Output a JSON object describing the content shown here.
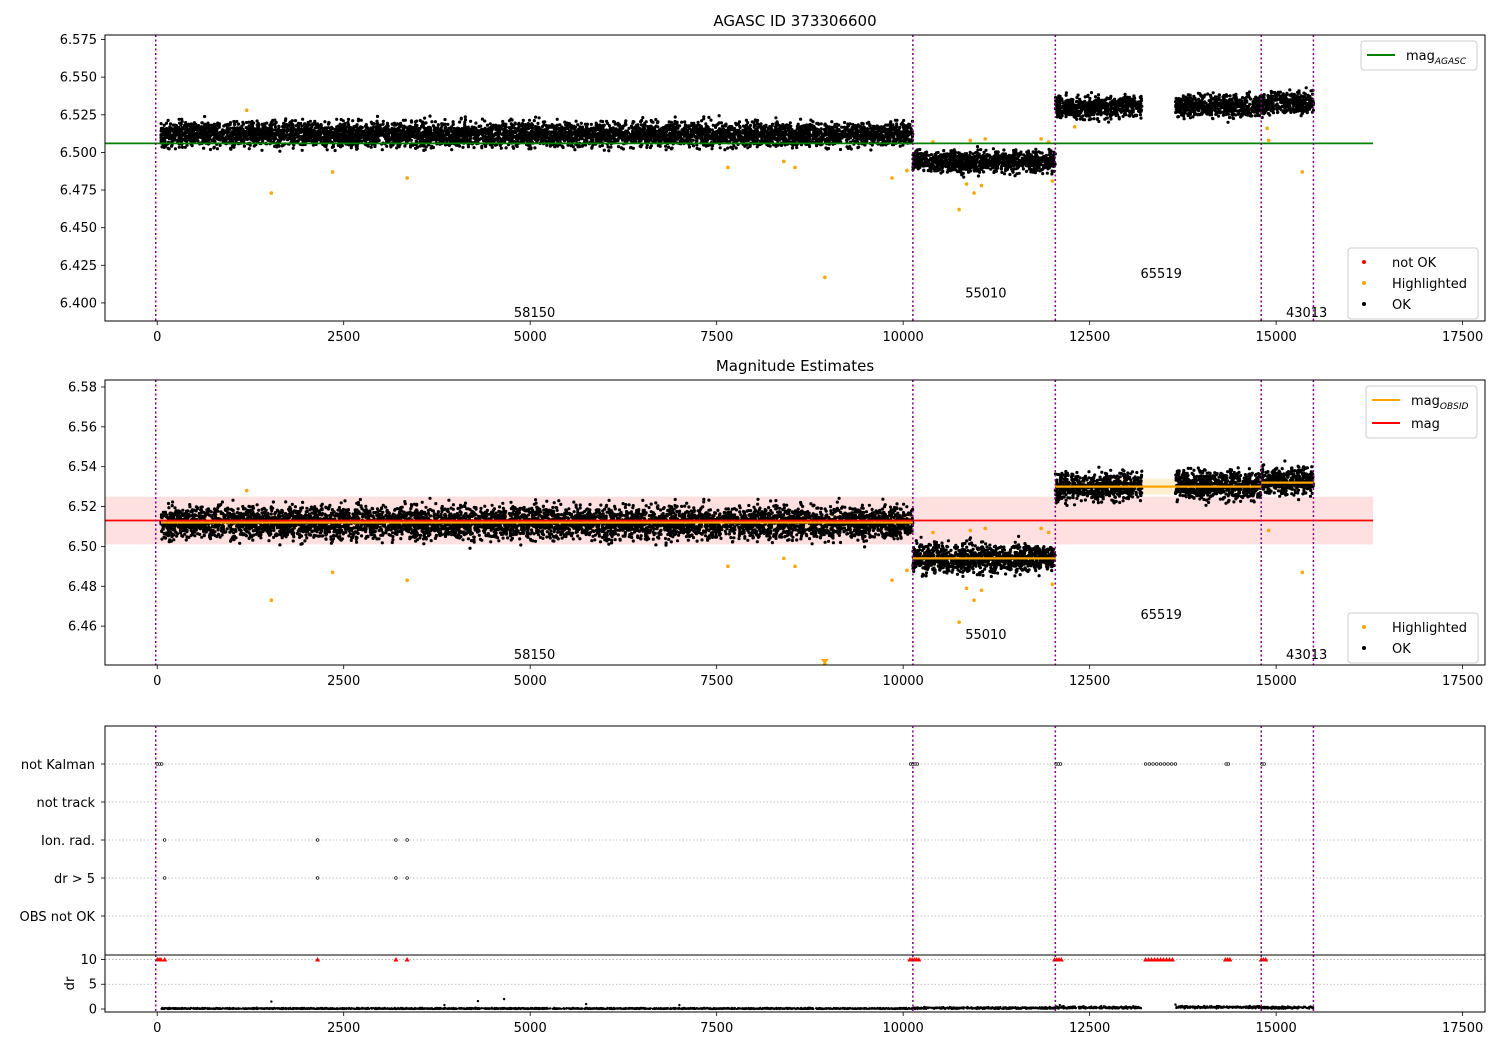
{
  "chart_data": [
    {
      "type": "scatter",
      "title": "AGASC ID 373306600",
      "xlim": [
        -700,
        17800
      ],
      "ylim": [
        6.388,
        6.578
      ],
      "xticks": [
        0,
        2500,
        5000,
        7500,
        10000,
        12500,
        15000,
        17500
      ],
      "yticks": [
        6.4,
        6.425,
        6.45,
        6.475,
        6.5,
        6.525,
        6.55,
        6.575
      ],
      "ytick_labels": [
        "6.400",
        "6.425",
        "6.450",
        "6.475",
        "6.500",
        "6.525",
        "6.550",
        "6.575"
      ],
      "legend_upper": {
        "position": "top-right",
        "entries": [
          {
            "name": "mag",
            "sub": "AGASC",
            "color": "#008000"
          }
        ]
      },
      "legend_lower": {
        "position": "bottom-right",
        "entries": [
          {
            "name": "not OK",
            "color": "#ff0000"
          },
          {
            "name": "Highlighted",
            "color": "#ffa500"
          },
          {
            "name": "OK",
            "color": "#000000"
          }
        ]
      },
      "hline": {
        "name": "mag_AGASC",
        "y": 6.506,
        "x": [
          -700,
          16300
        ],
        "color": "#008000"
      },
      "vlines": [
        -20,
        10130,
        12040,
        14800,
        15500
      ],
      "series": [
        {
          "name": "OK",
          "color": "#000000",
          "segments": [
            {
              "x": [
                50,
                10130
              ],
              "center": 6.512,
              "spread": 0.009
            },
            {
              "x": [
                10130,
                12040
              ],
              "center": 6.494,
              "spread": 0.008
            },
            {
              "x": [
                12040,
                13200
              ],
              "center": 6.53,
              "spread": 0.008
            },
            {
              "x": [
                13650,
                14800
              ],
              "center": 6.531,
              "spread": 0.008
            },
            {
              "x": [
                14800,
                15500
              ],
              "center": 6.533,
              "spread": 0.008
            }
          ]
        },
        {
          "name": "Highlighted",
          "color": "#ffa500",
          "points": [
            [
              1530,
              6.473
            ],
            [
              2350,
              6.487
            ],
            [
              3350,
              6.483
            ],
            [
              1200,
              6.528
            ],
            [
              7650,
              6.49
            ],
            [
              8400,
              6.494
            ],
            [
              8550,
              6.49
            ],
            [
              8950,
              6.417
            ],
            [
              9850,
              6.483
            ],
            [
              10050,
              6.488
            ],
            [
              10750,
              6.462
            ],
            [
              10850,
              6.479
            ],
            [
              10950,
              6.473
            ],
            [
              11050,
              6.478
            ],
            [
              10900,
              6.508
            ],
            [
              11100,
              6.509
            ],
            [
              10400,
              6.507
            ],
            [
              11850,
              6.509
            ],
            [
              11950,
              6.507
            ],
            [
              12000,
              6.481
            ],
            [
              14900,
              6.508
            ],
            [
              14880,
              6.516
            ],
            [
              15350,
              6.487
            ],
            [
              12300,
              6.517
            ]
          ]
        }
      ],
      "annotations": [
        {
          "text": "58150",
          "x": 5050,
          "y": 6.394
        },
        {
          "text": "55010",
          "x": 11100,
          "y": 6.407
        },
        {
          "text": "65519",
          "x": 13450,
          "y": 6.42
        },
        {
          "text": "43013",
          "x": 15400,
          "y": 6.394
        }
      ]
    },
    {
      "type": "scatter",
      "title": "Magnitude Estimates",
      "xlim": [
        -700,
        17800
      ],
      "ylim": [
        6.4405,
        6.5835
      ],
      "xticks": [
        0,
        2500,
        5000,
        7500,
        10000,
        12500,
        15000,
        17500
      ],
      "yticks": [
        6.46,
        6.48,
        6.5,
        6.52,
        6.54,
        6.56,
        6.58
      ],
      "ytick_labels": [
        "6.46",
        "6.48",
        "6.50",
        "6.52",
        "6.54",
        "6.56",
        "6.58"
      ],
      "legend_upper": {
        "position": "top-right",
        "entries": [
          {
            "name": "mag",
            "sub": "OBSID",
            "color": "#ffa500"
          },
          {
            "name": "mag",
            "sub": "",
            "color": "#ff0000"
          }
        ]
      },
      "legend_lower": {
        "position": "bottom-right",
        "entries": [
          {
            "name": "Highlighted",
            "color": "#ffa500"
          },
          {
            "name": "OK",
            "color": "#000000"
          }
        ]
      },
      "hline": {
        "name": "mag",
        "y": 6.513,
        "x": [
          -700,
          16300
        ],
        "color": "#ff0000",
        "band": [
          6.501,
          6.525
        ]
      },
      "obsid_lines": [
        {
          "x": [
            50,
            10130
          ],
          "y": 6.512
        },
        {
          "x": [
            10130,
            12040
          ],
          "y": 6.494
        },
        {
          "x": [
            12040,
            14800
          ],
          "y": 6.53
        },
        {
          "x": [
            14800,
            15500
          ],
          "y": 6.532
        }
      ],
      "vlines": [
        -20,
        10130,
        12040,
        14800,
        15500
      ],
      "series": [
        {
          "name": "OK",
          "color": "#000000",
          "segments": [
            {
              "x": [
                50,
                10130
              ],
              "center": 6.512,
              "spread": 0.009
            },
            {
              "x": [
                10130,
                12040
              ],
              "center": 6.494,
              "spread": 0.008
            },
            {
              "x": [
                12040,
                13200
              ],
              "center": 6.53,
              "spread": 0.008
            },
            {
              "x": [
                13650,
                14800
              ],
              "center": 6.531,
              "spread": 0.008
            },
            {
              "x": [
                14800,
                15500
              ],
              "center": 6.533,
              "spread": 0.008
            }
          ]
        },
        {
          "name": "Highlighted",
          "color": "#ffa500",
          "points": [
            [
              1530,
              6.473
            ],
            [
              2350,
              6.487
            ],
            [
              3350,
              6.483
            ],
            [
              1200,
              6.528
            ],
            [
              7650,
              6.49
            ],
            [
              8400,
              6.494
            ],
            [
              8550,
              6.49
            ],
            [
              8950,
              6.441
            ],
            [
              9850,
              6.483
            ],
            [
              10050,
              6.488
            ],
            [
              10750,
              6.462
            ],
            [
              10850,
              6.479
            ],
            [
              10950,
              6.473
            ],
            [
              11050,
              6.478
            ],
            [
              10900,
              6.508
            ],
            [
              11100,
              6.509
            ],
            [
              10400,
              6.507
            ],
            [
              11850,
              6.509
            ],
            [
              11950,
              6.507
            ],
            [
              12000,
              6.481
            ],
            [
              14900,
              6.508
            ],
            [
              15350,
              6.487
            ]
          ]
        }
      ],
      "annotations": [
        {
          "text": "58150",
          "x": 5050,
          "y": 6.446
        },
        {
          "text": "55010",
          "x": 11100,
          "y": 6.456
        },
        {
          "text": "65519",
          "x": 13450,
          "y": 6.466
        },
        {
          "text": "43013",
          "x": 15400,
          "y": 6.446
        }
      ]
    },
    {
      "type": "scatter",
      "title": "",
      "xlim": [
        -700,
        17800
      ],
      "xticks": [
        0,
        2500,
        5000,
        7500,
        10000,
        12500,
        15000,
        17500
      ],
      "categories": [
        "not Kalman",
        "not track",
        "Ion. rad.",
        "dr > 5",
        "OBS not OK"
      ],
      "vlines": [
        -20,
        10130,
        12040,
        14800,
        15500
      ],
      "flags": [
        {
          "category": "not Kalman",
          "x": [
            0,
            30,
            60,
            10100,
            10130,
            10160,
            10190,
            12050,
            12080,
            12110,
            13250,
            13300,
            13350,
            13400,
            13450,
            13500,
            13550,
            13600,
            13650,
            14330,
            14360,
            14810,
            14840
          ]
        },
        {
          "category": "Ion. rad.",
          "x": [
            100,
            2150,
            3200,
            3350
          ]
        },
        {
          "category": "dr > 5",
          "x": [
            100,
            2150,
            3200,
            3350
          ]
        }
      ]
    },
    {
      "type": "scatter",
      "title": "",
      "ylabel": "dr",
      "xlim": [
        -700,
        17800
      ],
      "ylim": [
        -0.6,
        10.9
      ],
      "xticks": [
        0,
        2500,
        5000,
        7500,
        10000,
        12500,
        15000,
        17500
      ],
      "yticks": [
        0,
        5,
        10
      ],
      "vlines": [
        -20,
        10130,
        12040,
        14800,
        15500
      ],
      "series": [
        {
          "name": "dr",
          "color": "#000000",
          "segments": [
            {
              "x": [
                50,
                10130
              ],
              "center": 0.1,
              "spread": 0.15
            },
            {
              "x": [
                10130,
                12040
              ],
              "center": 0.2,
              "spread": 0.2
            },
            {
              "x": [
                12040,
                13200
              ],
              "center": 0.3,
              "spread": 0.25
            },
            {
              "x": [
                13650,
                14800
              ],
              "center": 0.4,
              "spread": 0.25
            },
            {
              "x": [
                14800,
                15500
              ],
              "center": 0.3,
              "spread": 0.25
            }
          ],
          "extra_points": [
            [
              1530,
              1.5
            ],
            [
              4300,
              1.6
            ],
            [
              4650,
              2.0
            ],
            [
              3850,
              0.8
            ],
            [
              5750,
              1.0
            ],
            [
              7000,
              0.8
            ],
            [
              13650,
              0.9
            ],
            [
              12100,
              0.8
            ]
          ]
        },
        {
          "name": "clipped",
          "color": "#ff0000",
          "marker": "triangle",
          "y": 10,
          "x": [
            0,
            25,
            50,
            100,
            2150,
            3200,
            3350,
            10090,
            10120,
            10150,
            10180,
            10210,
            12030,
            12060,
            12090,
            12120,
            13250,
            13290,
            13330,
            13370,
            13410,
            13450,
            13490,
            13530,
            13570,
            13610,
            14320,
            14350,
            14380,
            14800,
            14830,
            14860
          ]
        }
      ]
    }
  ]
}
